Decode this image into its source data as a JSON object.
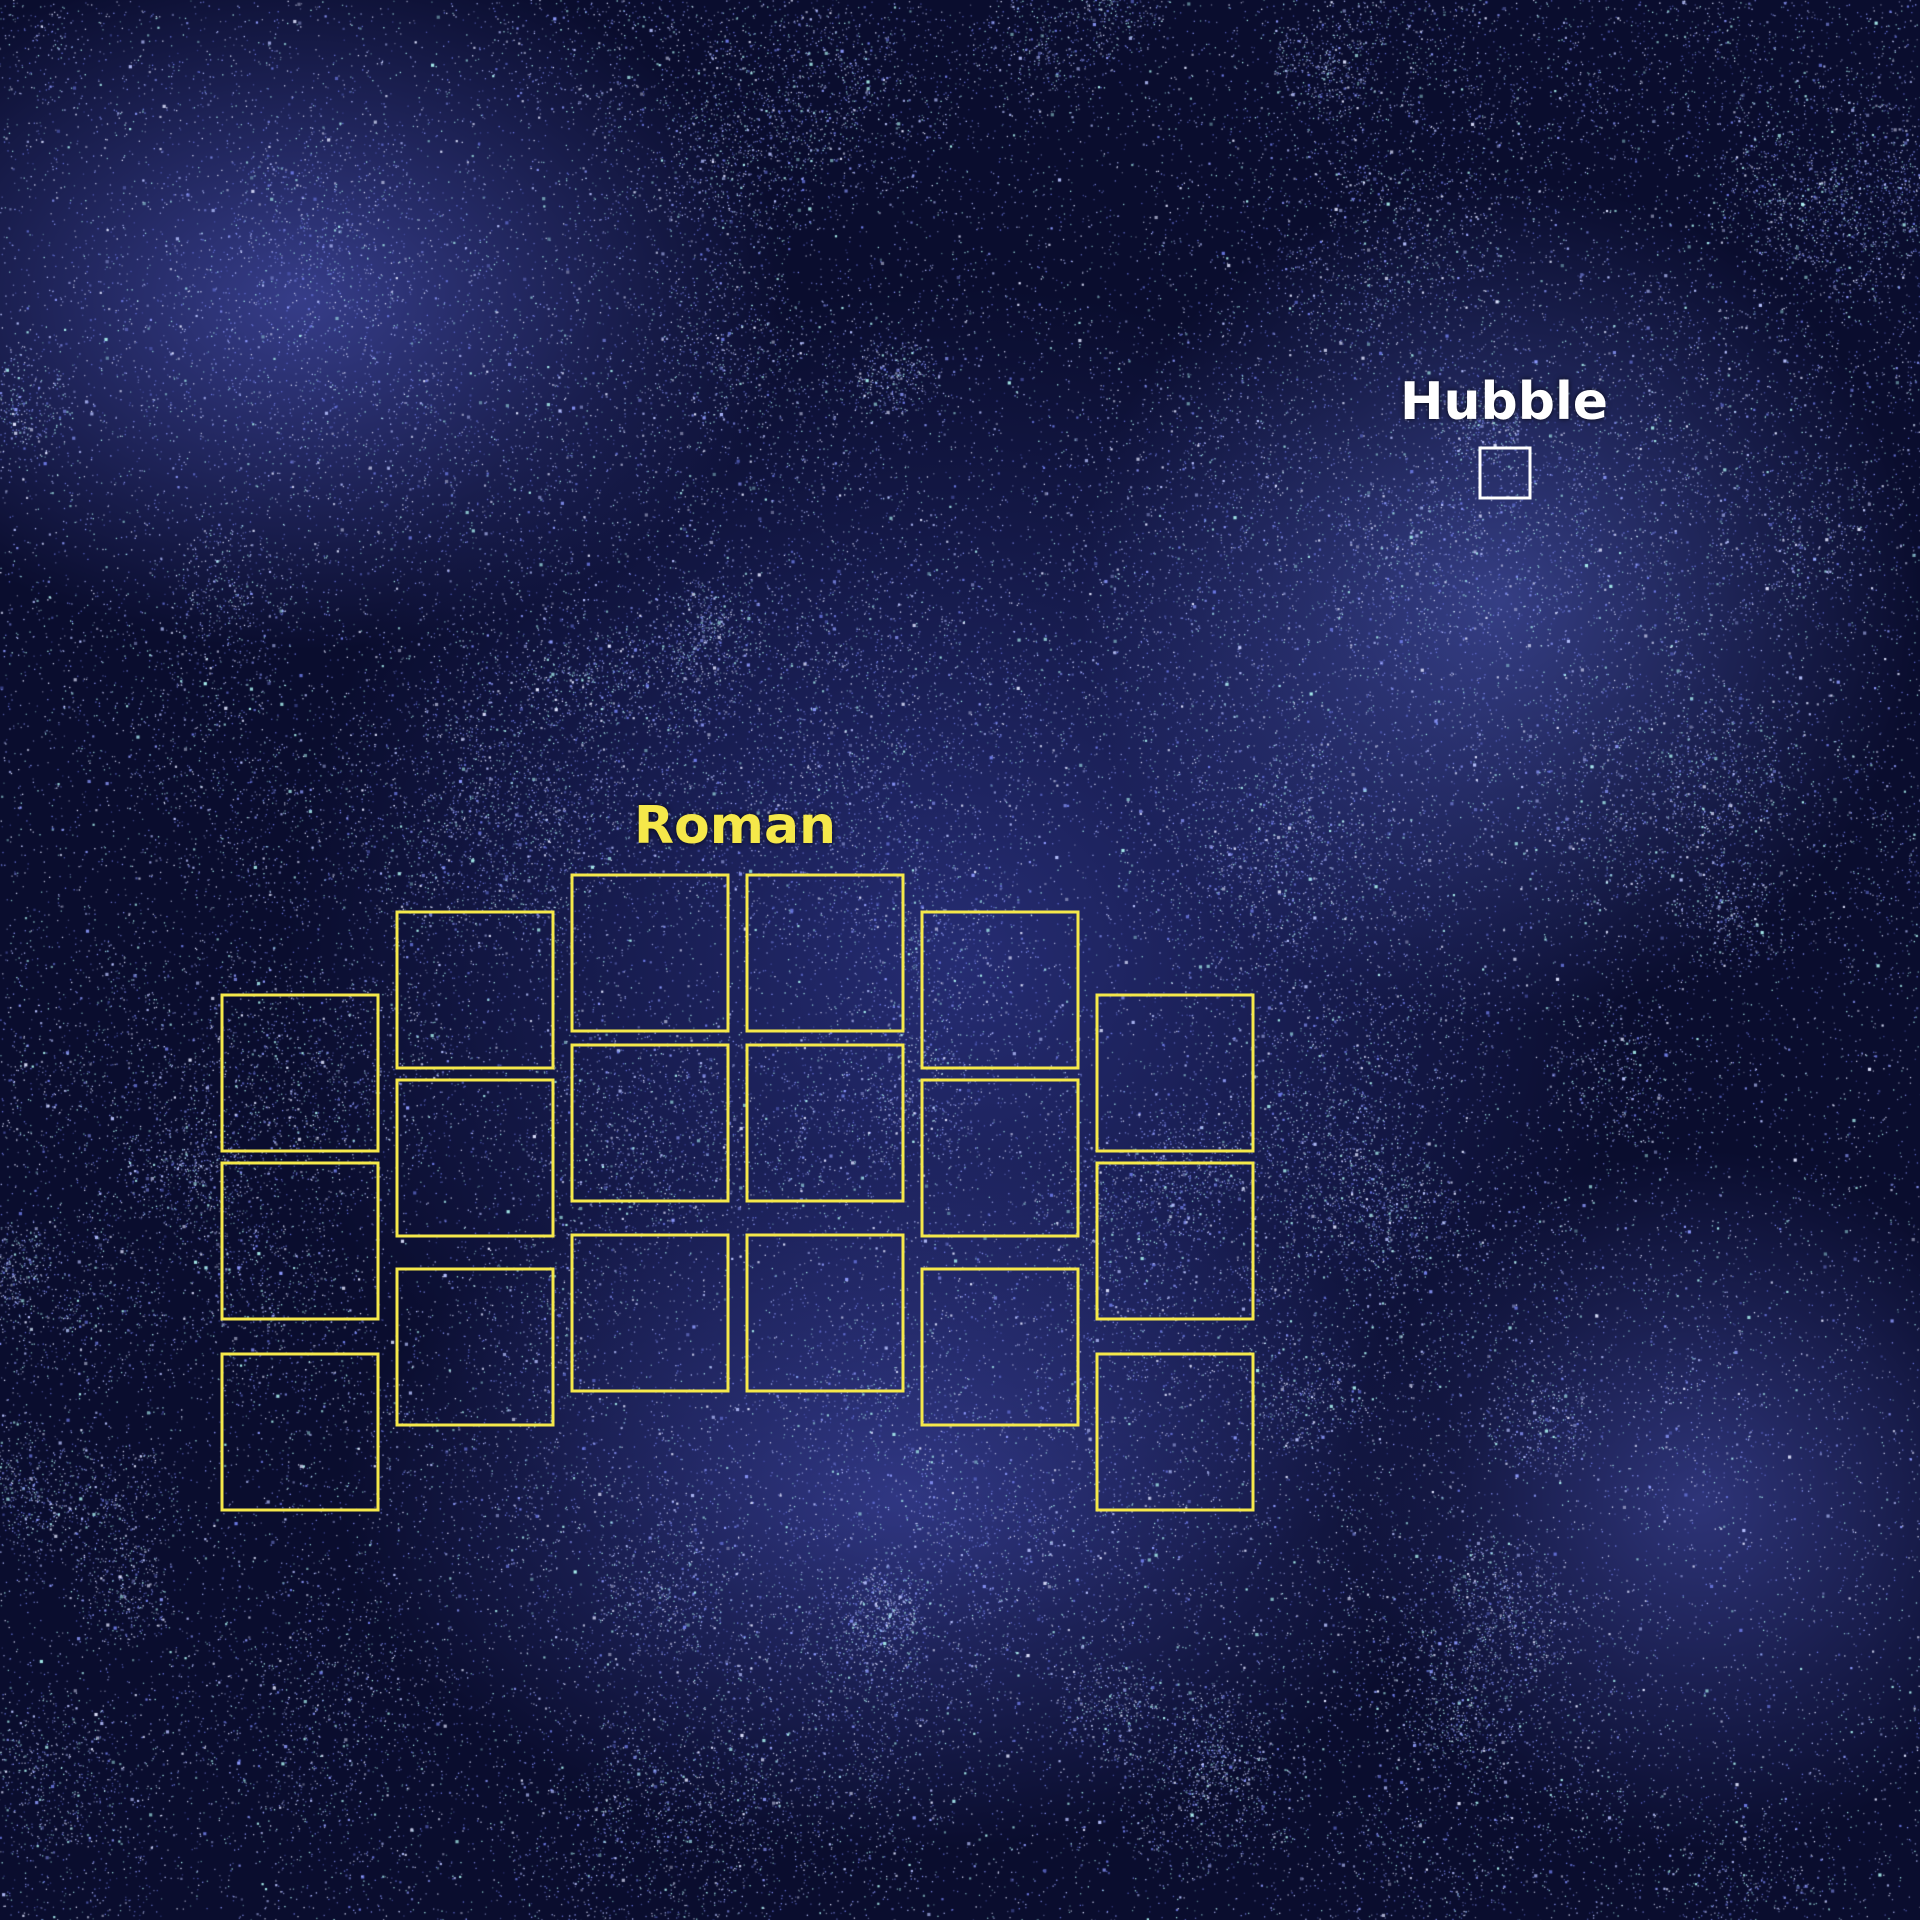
{
  "labels": {
    "hubble": "Hubble",
    "roman": "Roman"
  },
  "colors": {
    "hubble": "#ffffff",
    "roman": "#f5e84a",
    "background": "#0a0d2e",
    "stars": [
      "#8f9cff",
      "#b7c2ff",
      "#a9f0ee",
      "#dfe4ff",
      "#6f7de8"
    ]
  }
}
